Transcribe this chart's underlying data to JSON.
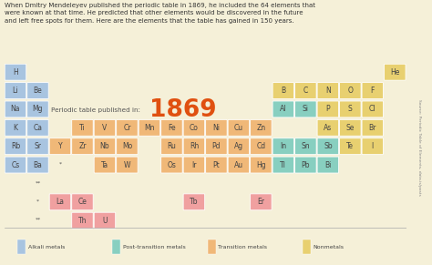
{
  "bg_color": "#f5f0d8",
  "text_intro": "When Dmitry Mendeleyev published the periodic table in 1869, he included the 64 elements that\nwere known at that time. He predicted that other elements would be discovered in the future\nand left free spots for them. Here are the elements that the table has gained in 150 years.",
  "year_text": "1869",
  "year_label": "Periodic table published in:",
  "colors": {
    "alkali": "#a8c4e0",
    "post_transition": "#88cfc0",
    "transition": "#f0b878",
    "nonmetal": "#e8d070",
    "new_elements": "#f0a0a0",
    "cell_border": "#ffffff"
  },
  "legend": [
    {
      "label": "Alkali metals",
      "color": "#a8c4e0"
    },
    {
      "label": "Post-transition metals",
      "color": "#88cfc0"
    },
    {
      "label": "Transition metals",
      "color": "#f0b878"
    },
    {
      "label": "Nonmetals",
      "color": "#e8d070"
    }
  ],
  "elements": [
    {
      "symbol": "H",
      "row": 0,
      "col": 0,
      "color": "alkali"
    },
    {
      "symbol": "He",
      "row": 0,
      "col": 17,
      "color": "nonmetal"
    },
    {
      "symbol": "Li",
      "row": 1,
      "col": 0,
      "color": "alkali"
    },
    {
      "symbol": "Be",
      "row": 1,
      "col": 1,
      "color": "alkali"
    },
    {
      "symbol": "B",
      "row": 1,
      "col": 12,
      "color": "nonmetal"
    },
    {
      "symbol": "C",
      "row": 1,
      "col": 13,
      "color": "nonmetal"
    },
    {
      "symbol": "N",
      "row": 1,
      "col": 14,
      "color": "nonmetal"
    },
    {
      "symbol": "O",
      "row": 1,
      "col": 15,
      "color": "nonmetal"
    },
    {
      "symbol": "F",
      "row": 1,
      "col": 16,
      "color": "nonmetal"
    },
    {
      "symbol": "Na",
      "row": 2,
      "col": 0,
      "color": "alkali"
    },
    {
      "symbol": "Mg",
      "row": 2,
      "col": 1,
      "color": "alkali"
    },
    {
      "symbol": "Al",
      "row": 2,
      "col": 12,
      "color": "post_transition"
    },
    {
      "symbol": "Si",
      "row": 2,
      "col": 13,
      "color": "post_transition"
    },
    {
      "symbol": "P",
      "row": 2,
      "col": 14,
      "color": "nonmetal"
    },
    {
      "symbol": "S",
      "row": 2,
      "col": 15,
      "color": "nonmetal"
    },
    {
      "symbol": "Cl",
      "row": 2,
      "col": 16,
      "color": "nonmetal"
    },
    {
      "symbol": "K",
      "row": 3,
      "col": 0,
      "color": "alkali"
    },
    {
      "symbol": "Ca",
      "row": 3,
      "col": 1,
      "color": "alkali"
    },
    {
      "symbol": "Ti",
      "row": 3,
      "col": 3,
      "color": "transition"
    },
    {
      "symbol": "V",
      "row": 3,
      "col": 4,
      "color": "transition"
    },
    {
      "symbol": "Cr",
      "row": 3,
      "col": 5,
      "color": "transition"
    },
    {
      "symbol": "Mn",
      "row": 3,
      "col": 6,
      "color": "transition"
    },
    {
      "symbol": "Fe",
      "row": 3,
      "col": 7,
      "color": "transition"
    },
    {
      "symbol": "Co",
      "row": 3,
      "col": 8,
      "color": "transition"
    },
    {
      "symbol": "Ni",
      "row": 3,
      "col": 9,
      "color": "transition"
    },
    {
      "symbol": "Cu",
      "row": 3,
      "col": 10,
      "color": "transition"
    },
    {
      "symbol": "Zn",
      "row": 3,
      "col": 11,
      "color": "transition"
    },
    {
      "symbol": "As",
      "row": 3,
      "col": 14,
      "color": "nonmetal"
    },
    {
      "symbol": "Se",
      "row": 3,
      "col": 15,
      "color": "nonmetal"
    },
    {
      "symbol": "Br",
      "row": 3,
      "col": 16,
      "color": "nonmetal"
    },
    {
      "symbol": "Rb",
      "row": 4,
      "col": 0,
      "color": "alkali"
    },
    {
      "symbol": "Sr",
      "row": 4,
      "col": 1,
      "color": "alkali"
    },
    {
      "symbol": "Y",
      "row": 4,
      "col": 2,
      "color": "transition"
    },
    {
      "symbol": "Zr",
      "row": 4,
      "col": 3,
      "color": "transition"
    },
    {
      "symbol": "Nb",
      "row": 4,
      "col": 4,
      "color": "transition"
    },
    {
      "symbol": "Mo",
      "row": 4,
      "col": 5,
      "color": "transition"
    },
    {
      "symbol": "Ru",
      "row": 4,
      "col": 7,
      "color": "transition"
    },
    {
      "symbol": "Rh",
      "row": 4,
      "col": 8,
      "color": "transition"
    },
    {
      "symbol": "Pd",
      "row": 4,
      "col": 9,
      "color": "transition"
    },
    {
      "symbol": "Ag",
      "row": 4,
      "col": 10,
      "color": "transition"
    },
    {
      "symbol": "Cd",
      "row": 4,
      "col": 11,
      "color": "transition"
    },
    {
      "symbol": "In",
      "row": 4,
      "col": 12,
      "color": "post_transition"
    },
    {
      "symbol": "Sn",
      "row": 4,
      "col": 13,
      "color": "post_transition"
    },
    {
      "symbol": "Sb",
      "row": 4,
      "col": 14,
      "color": "post_transition"
    },
    {
      "symbol": "Te",
      "row": 4,
      "col": 15,
      "color": "nonmetal"
    },
    {
      "symbol": "I",
      "row": 4,
      "col": 16,
      "color": "nonmetal"
    },
    {
      "symbol": "Cs",
      "row": 5,
      "col": 0,
      "color": "alkali"
    },
    {
      "symbol": "Ba",
      "row": 5,
      "col": 1,
      "color": "alkali"
    },
    {
      "symbol": "*",
      "row": 5,
      "col": 2,
      "color": "none"
    },
    {
      "symbol": "Ta",
      "row": 5,
      "col": 4,
      "color": "transition"
    },
    {
      "symbol": "W",
      "row": 5,
      "col": 5,
      "color": "transition"
    },
    {
      "symbol": "Os",
      "row": 5,
      "col": 7,
      "color": "transition"
    },
    {
      "symbol": "Ir",
      "row": 5,
      "col": 8,
      "color": "transition"
    },
    {
      "symbol": "Pt",
      "row": 5,
      "col": 9,
      "color": "transition"
    },
    {
      "symbol": "Au",
      "row": 5,
      "col": 10,
      "color": "transition"
    },
    {
      "symbol": "Hg",
      "row": 5,
      "col": 11,
      "color": "transition"
    },
    {
      "symbol": "Tl",
      "row": 5,
      "col": 12,
      "color": "post_transition"
    },
    {
      "symbol": "Pb",
      "row": 5,
      "col": 13,
      "color": "post_transition"
    },
    {
      "symbol": "Bi",
      "row": 5,
      "col": 14,
      "color": "post_transition"
    },
    {
      "symbol": "**",
      "row": 6,
      "col": 1,
      "color": "none"
    },
    {
      "symbol": "*",
      "row": 7,
      "col": 1,
      "color": "none"
    },
    {
      "symbol": "La",
      "row": 7,
      "col": 2,
      "color": "new"
    },
    {
      "symbol": "Ce",
      "row": 7,
      "col": 3,
      "color": "new"
    },
    {
      "symbol": "Tb",
      "row": 7,
      "col": 8,
      "color": "new"
    },
    {
      "symbol": "Er",
      "row": 7,
      "col": 11,
      "color": "new"
    },
    {
      "symbol": "**",
      "row": 8,
      "col": 1,
      "color": "none"
    },
    {
      "symbol": "Th",
      "row": 8,
      "col": 3,
      "color": "new"
    },
    {
      "symbol": "U",
      "row": 8,
      "col": 4,
      "color": "new"
    }
  ],
  "source_text": "Source: Periodic Table of Elements, data.is/posts"
}
